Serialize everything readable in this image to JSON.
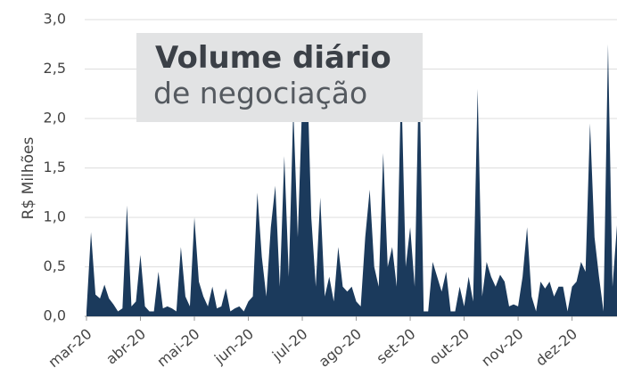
{
  "chart_data": {
    "type": "area",
    "title": "Volume diário",
    "subtitle": "de negociação",
    "y_label": "R$ Milhões",
    "color": "#1b3a5c",
    "grid": true,
    "values": [
      0.05,
      0.85,
      0.22,
      0.18,
      0.32,
      0.18,
      0.12,
      0.05,
      0.08,
      1.12,
      0.1,
      0.15,
      0.62,
      0.1,
      0.05,
      0.05,
      0.45,
      0.08,
      0.1,
      0.08,
      0.05,
      0.7,
      0.2,
      0.1,
      1.0,
      0.35,
      0.2,
      0.1,
      0.3,
      0.08,
      0.1,
      0.28,
      0.05,
      0.08,
      0.1,
      0.05,
      0.15,
      0.2,
      1.25,
      0.6,
      0.2,
      0.9,
      1.32,
      0.3,
      1.62,
      0.4,
      2.1,
      0.8,
      2.2,
      2.6,
      1.0,
      0.3,
      1.2,
      0.2,
      0.4,
      0.15,
      0.7,
      0.3,
      0.25,
      0.3,
      0.15,
      0.1,
      0.8,
      1.28,
      0.5,
      0.3,
      1.65,
      0.5,
      0.7,
      0.3,
      2.4,
      0.5,
      0.9,
      0.3,
      2.6,
      0.05,
      0.05,
      0.55,
      0.4,
      0.25,
      0.45,
      0.05,
      0.05,
      0.3,
      0.1,
      0.4,
      0.15,
      2.3,
      0.2,
      0.55,
      0.4,
      0.3,
      0.42,
      0.35,
      0.1,
      0.12,
      0.1,
      0.4,
      0.9,
      0.2,
      0.05,
      0.35,
      0.28,
      0.35,
      0.2,
      0.3,
      0.3,
      0.05,
      0.3,
      0.35,
      0.55,
      0.45,
      1.95,
      0.8,
      0.4,
      0.05,
      2.75,
      0.3,
      0.92
    ],
    "xlim": [
      0,
      118
    ],
    "xticks": [
      {
        "value": 0,
        "label": "mar-20"
      },
      {
        "value": 12,
        "label": "abr-20"
      },
      {
        "value": 24,
        "label": "mai-20"
      },
      {
        "value": 36,
        "label": "jun-20"
      },
      {
        "value": 48,
        "label": "jul-20"
      },
      {
        "value": 60,
        "label": "ago-20"
      },
      {
        "value": 72,
        "label": "set-20"
      },
      {
        "value": 84,
        "label": "out-20"
      },
      {
        "value": 96,
        "label": "nov-20"
      },
      {
        "value": 108,
        "label": "dez-20"
      }
    ],
    "ylim": [
      0,
      3
    ],
    "yticks": [
      {
        "value": 0,
        "label": "0,0"
      },
      {
        "value": 0.5,
        "label": "0,5"
      },
      {
        "value": 1,
        "label": "1,0"
      },
      {
        "value": 1.5,
        "label": "1,5"
      },
      {
        "value": 2,
        "label": "2,0"
      },
      {
        "value": 2.5,
        "label": "2,5"
      },
      {
        "value": 3,
        "label": "3,0"
      }
    ]
  }
}
